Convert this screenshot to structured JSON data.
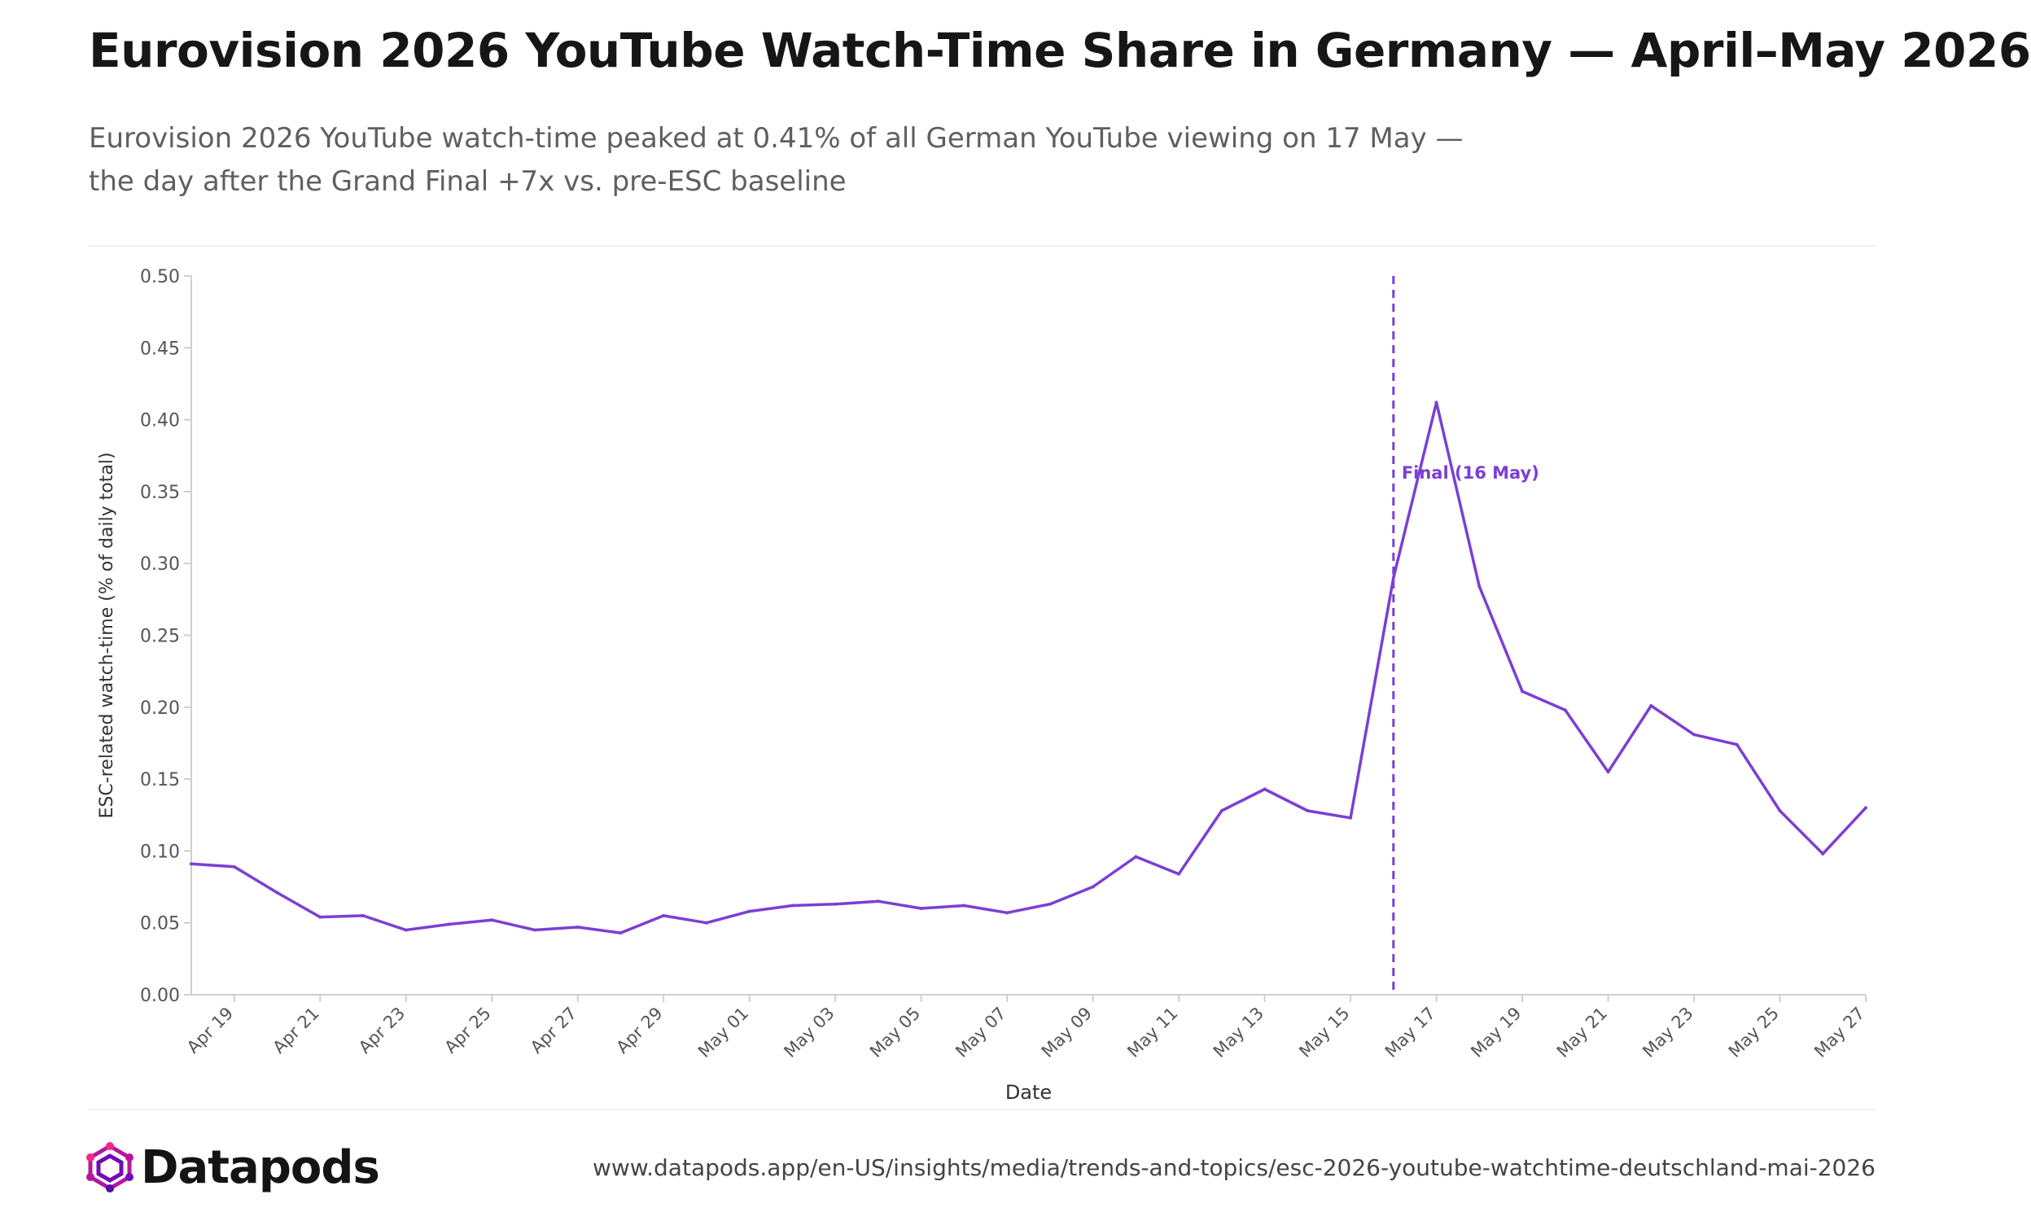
{
  "header": {
    "title": "Eurovision 2026 YouTube Watch-Time Share in Germany — April–May 2026",
    "subtitle": "Eurovision 2026 YouTube watch-time peaked at 0.41% of all German YouTube viewing on 17 May — the day after the Grand Final +7x vs. pre-ESC baseline"
  },
  "footer": {
    "brand": "Datapods",
    "url": "www.datapods.app/en-US/insights/media/trends-and-topics/esc-2026-youtube-watchtime-deutschland-mai-2026"
  },
  "colors": {
    "line": "#7b3fd4",
    "annotation": "#7b3fd4",
    "axis": "#cfcfcf",
    "tick_text": "#555555"
  },
  "chart_data": {
    "type": "line",
    "xlabel": "Date",
    "ylabel": "ESC-related watch-time (% of daily total)",
    "ylim": [
      0,
      0.5
    ],
    "yticks": [
      "0.00",
      "0.05",
      "0.10",
      "0.15",
      "0.20",
      "0.25",
      "0.30",
      "0.35",
      "0.40",
      "0.45",
      "0.50"
    ],
    "xlim": [
      "2026-04-18",
      "2026-05-27"
    ],
    "xtick_dates": [
      "2026-04-19",
      "2026-04-21",
      "2026-04-23",
      "2026-04-25",
      "2026-04-27",
      "2026-04-29",
      "2026-05-01",
      "2026-05-03",
      "2026-05-05",
      "2026-05-07",
      "2026-05-09",
      "2026-05-11",
      "2026-05-13",
      "2026-05-15",
      "2026-05-17",
      "2026-05-19",
      "2026-05-21",
      "2026-05-23",
      "2026-05-25",
      "2026-05-27"
    ],
    "xtick_labels": [
      "Apr 19",
      "Apr 21",
      "Apr 23",
      "Apr 25",
      "Apr 27",
      "Apr 29",
      "May 01",
      "May 03",
      "May 05",
      "May 07",
      "May 09",
      "May 11",
      "May 13",
      "May 15",
      "May 17",
      "May 19",
      "May 21",
      "May 23",
      "May 25",
      "May 27"
    ],
    "grid": false,
    "series": [
      {
        "x": [
          "2026-04-18",
          "2026-04-19",
          "2026-04-20",
          "2026-04-21",
          "2026-04-22",
          "2026-04-23",
          "2026-04-24",
          "2026-04-25",
          "2026-04-26",
          "2026-04-27",
          "2026-04-28",
          "2026-04-29",
          "2026-04-30",
          "2026-05-01",
          "2026-05-02",
          "2026-05-03",
          "2026-05-04",
          "2026-05-05",
          "2026-05-06",
          "2026-05-07",
          "2026-05-08",
          "2026-05-09",
          "2026-05-10",
          "2026-05-11",
          "2026-05-12",
          "2026-05-13",
          "2026-05-14",
          "2026-05-15",
          "2026-05-16",
          "2026-05-17",
          "2026-05-18",
          "2026-05-19",
          "2026-05-20",
          "2026-05-21",
          "2026-05-22",
          "2026-05-23",
          "2026-05-24",
          "2026-05-25",
          "2026-05-26",
          "2026-05-27"
        ],
        "values": [
          0.091,
          0.089,
          0.071,
          0.054,
          0.055,
          0.045,
          0.049,
          0.052,
          0.045,
          0.047,
          0.043,
          0.055,
          0.05,
          0.058,
          0.062,
          0.063,
          0.065,
          0.06,
          0.062,
          0.057,
          0.063,
          0.075,
          0.096,
          0.084,
          0.128,
          0.143,
          0.128,
          0.123,
          0.29,
          0.412,
          0.284,
          0.211,
          0.198,
          0.155,
          0.201,
          0.181,
          0.174,
          0.128,
          0.098,
          0.13
        ]
      }
    ],
    "annotations": [
      {
        "type": "vline",
        "x": "2026-05-16",
        "label": "Final (16 May)"
      }
    ]
  }
}
